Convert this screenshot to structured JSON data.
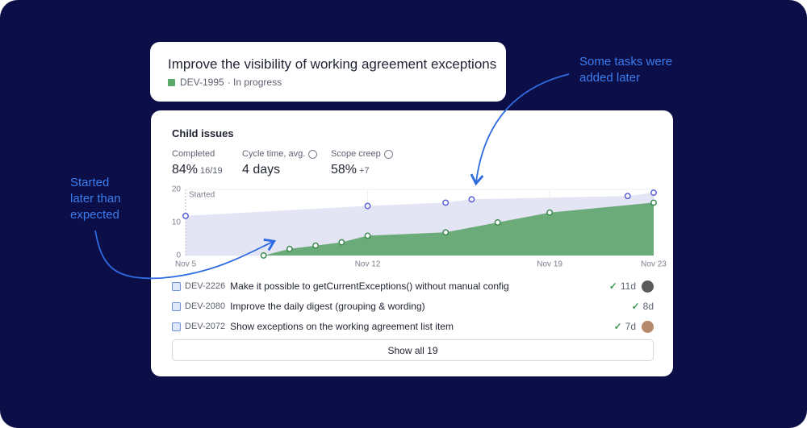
{
  "title_card": {
    "title": "Improve the visibility of working agreement exceptions",
    "key": "DEV-1995",
    "status": "· In progress"
  },
  "annotations": [
    "Some tasks were added later",
    "Started later than expected"
  ],
  "panel": {
    "heading": "Child issues",
    "metrics": [
      {
        "label": "Completed",
        "value": "84%",
        "detail": "16/19"
      },
      {
        "label": "Cycle time, avg.",
        "value": "4 days"
      },
      {
        "label": "Scope creep",
        "value": "58%",
        "detail": "+7"
      }
    ]
  },
  "chart_data": {
    "type": "area",
    "marker_label": "Started",
    "xlim": [
      5,
      23
    ],
    "xticks": [
      {
        "value": 5,
        "label": "Nov 5"
      },
      {
        "value": 12,
        "label": "Nov 12"
      },
      {
        "value": 19,
        "label": "Nov 19"
      },
      {
        "value": 23,
        "label": "Nov 23"
      }
    ],
    "ylim": [
      0,
      20
    ],
    "yticks": [
      0,
      10,
      20
    ],
    "grid": true,
    "series": [
      {
        "color": "#5b60d8",
        "fill": "#e3e4f4",
        "x": [
          5,
          12,
          15,
          16,
          22,
          23
        ],
        "values": [
          12,
          15,
          16,
          17,
          18,
          19
        ]
      },
      {
        "color": "#3f8a50",
        "fill": "#6aab79",
        "x": [
          8,
          9,
          10,
          11,
          12,
          15,
          17,
          19,
          23
        ],
        "values": [
          0,
          2,
          3,
          4,
          6,
          7,
          10,
          13,
          16
        ]
      }
    ]
  },
  "issues": [
    {
      "key": "DEV-2226",
      "title": "Make it possible to getCurrentExceptions() without manual config",
      "duration": "11d"
    },
    {
      "key": "DEV-2080",
      "title": "Improve the daily digest (grouping & wording)",
      "duration": "8d"
    },
    {
      "key": "DEV-2072",
      "title": "Show exceptions on the working agreement list item",
      "duration": "7d"
    }
  ],
  "button": "Show all 19"
}
